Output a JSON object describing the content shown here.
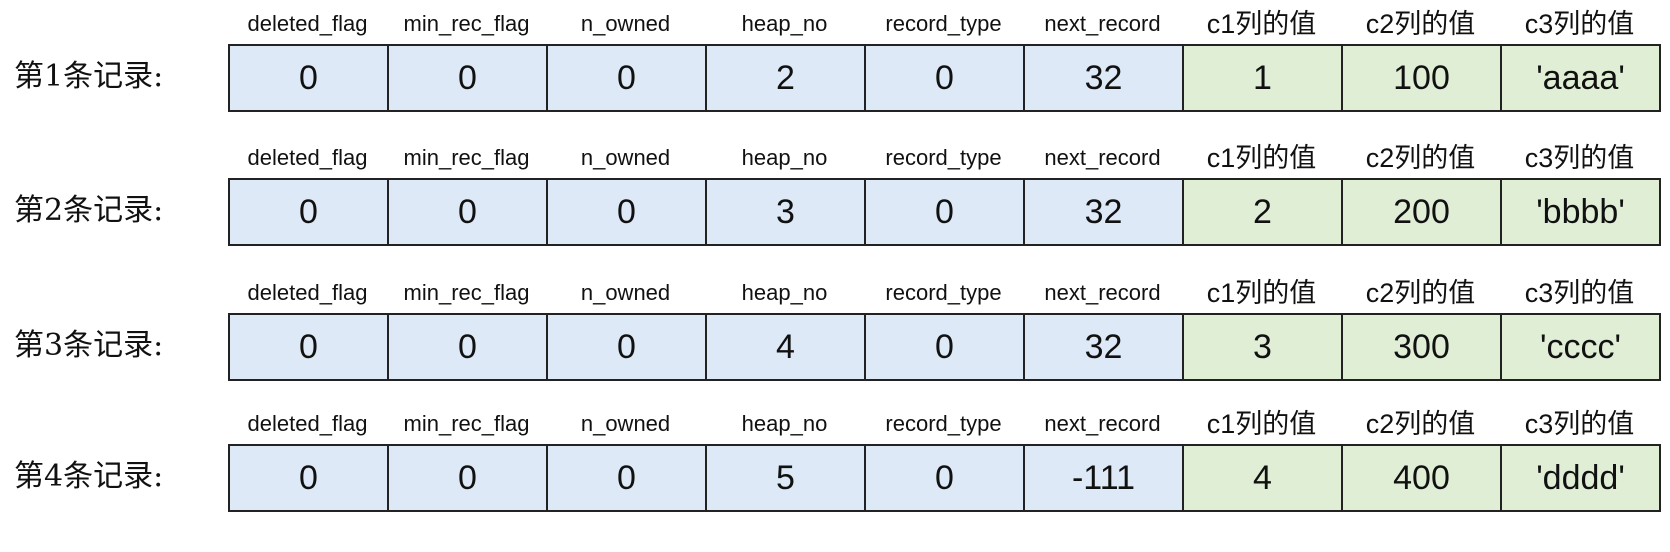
{
  "headers": [
    "deleted_flag",
    "min_rec_flag",
    "n_owned",
    "heap_no",
    "record_type",
    "next_record",
    "c1列的值",
    "c2列的值",
    "c3列的值"
  ],
  "colors": {
    "meta_fill": "#dde9f6",
    "data_fill": "#dfeed5",
    "border": "#222222"
  },
  "records": [
    {
      "label": "第1条记录:",
      "values": [
        "0",
        "0",
        "0",
        "2",
        "0",
        "32",
        "1",
        "100",
        "'aaaa'"
      ]
    },
    {
      "label": "第2条记录:",
      "values": [
        "0",
        "0",
        "0",
        "3",
        "0",
        "32",
        "2",
        "200",
        "'bbbb'"
      ]
    },
    {
      "label": "第3条记录:",
      "values": [
        "0",
        "0",
        "0",
        "4",
        "0",
        "32",
        "3",
        "300",
        "'cccc'"
      ]
    },
    {
      "label": "第4条记录:",
      "values": [
        "0",
        "0",
        "0",
        "5",
        "0",
        "-111",
        "4",
        "400",
        "'dddd'"
      ]
    }
  ]
}
